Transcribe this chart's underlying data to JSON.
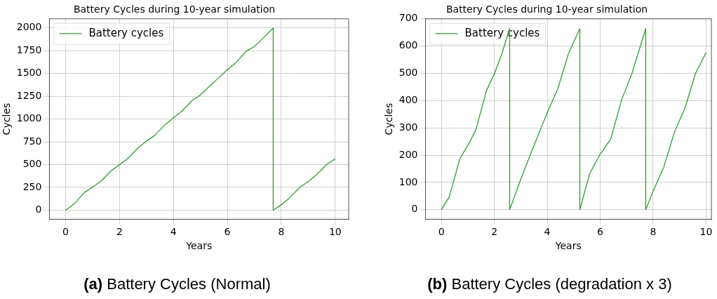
{
  "chart_data": [
    {
      "type": "line",
      "title": "Battery Cycles during 10-year simulation",
      "xlabel": "Years",
      "ylabel": "Cycles",
      "annotations": [
        "(a) Battery Cycles (Normal)"
      ],
      "legend": "top left",
      "grid": true,
      "xlim": [
        -0.6,
        10.5
      ],
      "xticks": [
        0,
        2,
        4,
        6,
        8,
        10
      ],
      "ylim": [
        -100,
        2100
      ],
      "yticks": [
        0,
        250,
        500,
        750,
        1000,
        1250,
        1500,
        1750,
        2000
      ],
      "series": [
        {
          "name": "Battery cycles",
          "color": "#2ca02c",
          "x": [
            0,
            0.33,
            0.7,
            1.0,
            1.3,
            1.7,
            2.0,
            2.3,
            2.7,
            3.0,
            3.3,
            3.7,
            4.0,
            4.3,
            4.7,
            5.0,
            5.3,
            5.7,
            6.0,
            6.3,
            6.7,
            7.0,
            7.3,
            7.7,
            7.7,
            8.0,
            8.3,
            8.7,
            9.0,
            9.3,
            9.7,
            10
          ],
          "values": [
            0,
            72,
            193,
            253,
            313,
            434,
            499,
            566,
            687,
            759,
            819,
            940,
            1012,
            1084,
            1205,
            1265,
            1349,
            1458,
            1542,
            1614,
            1742,
            1795,
            1880,
            2000,
            0,
            60,
            133,
            253,
            313,
            386,
            506,
            561
          ]
        }
      ]
    },
    {
      "type": "line",
      "title": "Battery Cycles during 10-year simulation",
      "xlabel": "Years",
      "ylabel": "Cycles",
      "annotations": [
        "(b) Battery Cycles (degradation x 3)"
      ],
      "legend": "top left",
      "grid": true,
      "xlim": [
        -0.6,
        10.2
      ],
      "xticks": [
        0,
        2,
        4,
        6,
        8,
        10
      ],
      "ylim": [
        -35,
        700
      ],
      "yticks": [
        0,
        100,
        200,
        300,
        400,
        500,
        600,
        700
      ],
      "series": [
        {
          "name": "Battery cycles",
          "color": "#2ca02c",
          "x": [
            0,
            0.3,
            0.7,
            1.0,
            1.3,
            1.7,
            2.0,
            2.3,
            2.58,
            2.58,
            3.0,
            3.4,
            3.8,
            4.0,
            4.4,
            4.8,
            5.23,
            5.23,
            5.6,
            6.0,
            6.4,
            6.8,
            7.2,
            7.72,
            7.72,
            8.0,
            8.4,
            8.8,
            9.2,
            9.6,
            10
          ],
          "values": [
            0,
            48,
            188,
            236,
            292,
            436,
            498,
            576,
            664,
            0,
            112,
            212,
            308,
            356,
            444,
            572,
            664,
            0,
            132,
            204,
            260,
            400,
            500,
            664,
            0,
            68,
            156,
            284,
            372,
            500,
            576
          ]
        }
      ]
    }
  ]
}
